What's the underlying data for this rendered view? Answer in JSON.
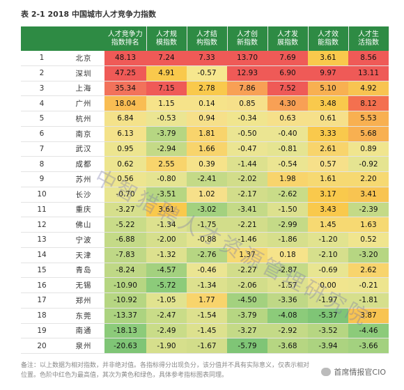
{
  "title": "表 2-1 2018 中国城市人才竞争力指数",
  "headers": [
    "",
    "",
    "人才竞争力\n指数排名",
    "人才规\n模指数",
    "人才结\n构指数",
    "人才创\n新指数",
    "人才发\n展指数",
    "人才效\n能指数",
    "人才生\n活指数"
  ],
  "rows": [
    {
      "rank": "1",
      "city": "北京",
      "vals": [
        "48.13",
        "7.24",
        "7.33",
        "13.70",
        "7.69",
        "3.61",
        "8.56"
      ],
      "colors": [
        "#ef5a57",
        "#ef5a57",
        "#ef5a57",
        "#ef5a57",
        "#ef5a57",
        "#f9c94c",
        "#ef5a57"
      ]
    },
    {
      "rank": "2",
      "city": "深圳",
      "vals": [
        "47.25",
        "4.91",
        "-0.57",
        "12.93",
        "6.90",
        "9.97",
        "13.11"
      ],
      "colors": [
        "#ef5a57",
        "#f9c94c",
        "#f6e78e",
        "#ef5a57",
        "#ef5a57",
        "#ef5a57",
        "#ef5a57"
      ]
    },
    {
      "rank": "3",
      "city": "上海",
      "vals": [
        "35.34",
        "7.15",
        "2.78",
        "7.86",
        "7.52",
        "5.10",
        "4.92"
      ],
      "colors": [
        "#f2725b",
        "#ef5a57",
        "#f9c94c",
        "#f8a055",
        "#ef5a57",
        "#f8b051",
        "#f8c451"
      ]
    },
    {
      "rank": "4",
      "city": "广州",
      "vals": [
        "18.04",
        "1.15",
        "0.14",
        "0.85",
        "4.30",
        "3.48",
        "8.12"
      ],
      "colors": [
        "#f9bd53",
        "#f6e38a",
        "#f6e38a",
        "#f6e08a",
        "#f8a055",
        "#f9c94c",
        "#f4704f"
      ]
    },
    {
      "rank": "5",
      "city": "杭州",
      "vals": [
        "6.84",
        "-0.53",
        "0.94",
        "-0.34",
        "0.63",
        "0.61",
        "5.53"
      ],
      "colors": [
        "#f4e28a",
        "#ebe592",
        "#f6e08a",
        "#f0e58e",
        "#f6e08a",
        "#f6e08a",
        "#f8b051"
      ]
    },
    {
      "rank": "6",
      "city": "南京",
      "vals": [
        "6.13",
        "-3.79",
        "1.81",
        "-0.50",
        "-0.40",
        "3.33",
        "5.68"
      ],
      "colors": [
        "#f4e28a",
        "#b6d682",
        "#f8d46c",
        "#ebe592",
        "#ebe592",
        "#f9c94c",
        "#f8b051"
      ]
    },
    {
      "rank": "7",
      "city": "武汉",
      "vals": [
        "0.95",
        "-2.94",
        "1.66",
        "-0.47",
        "-0.81",
        "2.61",
        "0.89"
      ],
      "colors": [
        "#ede58f",
        "#c4da87",
        "#f8d46c",
        "#ebe592",
        "#e5e491",
        "#f8d46c",
        "#f0e58e"
      ]
    },
    {
      "rank": "8",
      "city": "成都",
      "vals": [
        "0.62",
        "2.55",
        "0.39",
        "-1.44",
        "-0.54",
        "0.57",
        "-0.92"
      ],
      "colors": [
        "#ede58f",
        "#f8d46c",
        "#f6e38a",
        "#dde18e",
        "#ebe592",
        "#f6e08a",
        "#e5e491"
      ]
    },
    {
      "rank": "9",
      "city": "苏州",
      "vals": [
        "0.56",
        "-0.80",
        "-2.41",
        "-2.02",
        "1.98",
        "1.61",
        "2.20"
      ],
      "colors": [
        "#ede58f",
        "#e5e491",
        "#c4da87",
        "#d2dd8a",
        "#f8d46c",
        "#f6d972",
        "#f6d972"
      ]
    },
    {
      "rank": "10",
      "city": "长沙",
      "vals": [
        "-0.70",
        "-3.51",
        "1.02",
        "-2.17",
        "-2.62",
        "3.17",
        "3.41"
      ],
      "colors": [
        "#e8e591",
        "#b6d682",
        "#f6e08a",
        "#d2dd8a",
        "#c9dc88",
        "#f9c94c",
        "#f8c451"
      ]
    },
    {
      "rank": "11",
      "city": "重庆",
      "vals": [
        "-3.27",
        "3.61",
        "-3.02",
        "-3.41",
        "-1.50",
        "3.43",
        "-2.39"
      ],
      "colors": [
        "#d6df8c",
        "#f9c94c",
        "#a3d17f",
        "#c4da87",
        "#dde18e",
        "#f9c94c",
        "#c4da87"
      ]
    },
    {
      "rank": "12",
      "city": "佛山",
      "vals": [
        "-5.22",
        "-1.34",
        "-1.75",
        "-2.21",
        "-2.99",
        "1.45",
        "1.63"
      ],
      "colors": [
        "#c9dc88",
        "#dde18e",
        "#d2dd8a",
        "#d2dd8a",
        "#c4da87",
        "#f6d972",
        "#f6d972"
      ]
    },
    {
      "rank": "13",
      "city": "宁波",
      "vals": [
        "-6.88",
        "-2.00",
        "-0.88",
        "-1.46",
        "-1.86",
        "-1.20",
        "0.52"
      ],
      "colors": [
        "#c4da87",
        "#d6df8c",
        "#e5e491",
        "#dde18e",
        "#d6df8c",
        "#e1e38f",
        "#f0e58e"
      ]
    },
    {
      "rank": "14",
      "city": "天津",
      "vals": [
        "-7.83",
        "-1.32",
        "-2.76",
        "1.37",
        "0.18",
        "-2.10",
        "-3.20"
      ],
      "colors": [
        "#bfd886",
        "#dde18e",
        "#b6d682",
        "#f6d972",
        "#f6e38a",
        "#d6df8c",
        "#b6d682"
      ]
    },
    {
      "rank": "15",
      "city": "青岛",
      "vals": [
        "-8.24",
        "-4.57",
        "-0.46",
        "-2.27",
        "-2.87",
        "-0.69",
        "2.62"
      ],
      "colors": [
        "#bfd886",
        "#a3d17f",
        "#ebe592",
        "#d2dd8a",
        "#c4da87",
        "#e8e591",
        "#f8d46c"
      ]
    },
    {
      "rank": "16",
      "city": "无锡",
      "vals": [
        "-10.90",
        "-5.72",
        "-1.34",
        "-2.06",
        "-1.57",
        "0.00",
        "-0.21"
      ],
      "colors": [
        "#b6d682",
        "#8ccb7a",
        "#dde18e",
        "#d2dd8a",
        "#dde18e",
        "#f0e58e",
        "#ede58f"
      ]
    },
    {
      "rank": "17",
      "city": "郑州",
      "vals": [
        "-10.92",
        "-1.05",
        "1.77",
        "-4.50",
        "-3.36",
        "-1.97",
        "-1.81"
      ],
      "colors": [
        "#b6d682",
        "#e1e38f",
        "#f8d46c",
        "#a3d17f",
        "#bfd886",
        "#d6df8c",
        "#d6df8c"
      ]
    },
    {
      "rank": "18",
      "city": "东莞",
      "vals": [
        "-13.37",
        "-2.47",
        "-1.54",
        "-3.79",
        "-4.08",
        "-5.37",
        "3.87"
      ],
      "colors": [
        "#acd380",
        "#c9dc88",
        "#dde18e",
        "#b6d682",
        "#8ccb7a",
        "#7fc576",
        "#f8c451"
      ]
    },
    {
      "rank": "19",
      "city": "南通",
      "vals": [
        "-18.13",
        "-2.49",
        "-1.45",
        "-3.27",
        "-2.92",
        "-3.52",
        "-4.46"
      ],
      "colors": [
        "#8ccb7a",
        "#c9dc88",
        "#dde18e",
        "#c4da87",
        "#c4da87",
        "#b6d682",
        "#8ccb7a"
      ]
    },
    {
      "rank": "20",
      "city": "泉州",
      "vals": [
        "-20.63",
        "-1.90",
        "-1.67",
        "-5.79",
        "-3.68",
        "-3.94",
        "-3.66"
      ],
      "colors": [
        "#7fc576",
        "#d6df8c",
        "#d2dd8a",
        "#7fc576",
        "#b6d682",
        "#acd380",
        "#a3d17f"
      ]
    }
  ],
  "watermark": "中智猎聘人才资源管理研究院",
  "note": "备注：以上数据为相对指数，并非绝对值。各指标得分出现负分，该分值并不具有实际意义，仅表示相对位置。色阶中红色为最高值，其次为黄色和绿色，具体参考指标图表同理。",
  "brand": "首席情报官CIO",
  "colors": {
    "header_bg": "#2e8b44",
    "row_bg": "#ffffff",
    "high": "#ef5a57",
    "mid": "#f9c94c",
    "low": "#7fc576"
  }
}
